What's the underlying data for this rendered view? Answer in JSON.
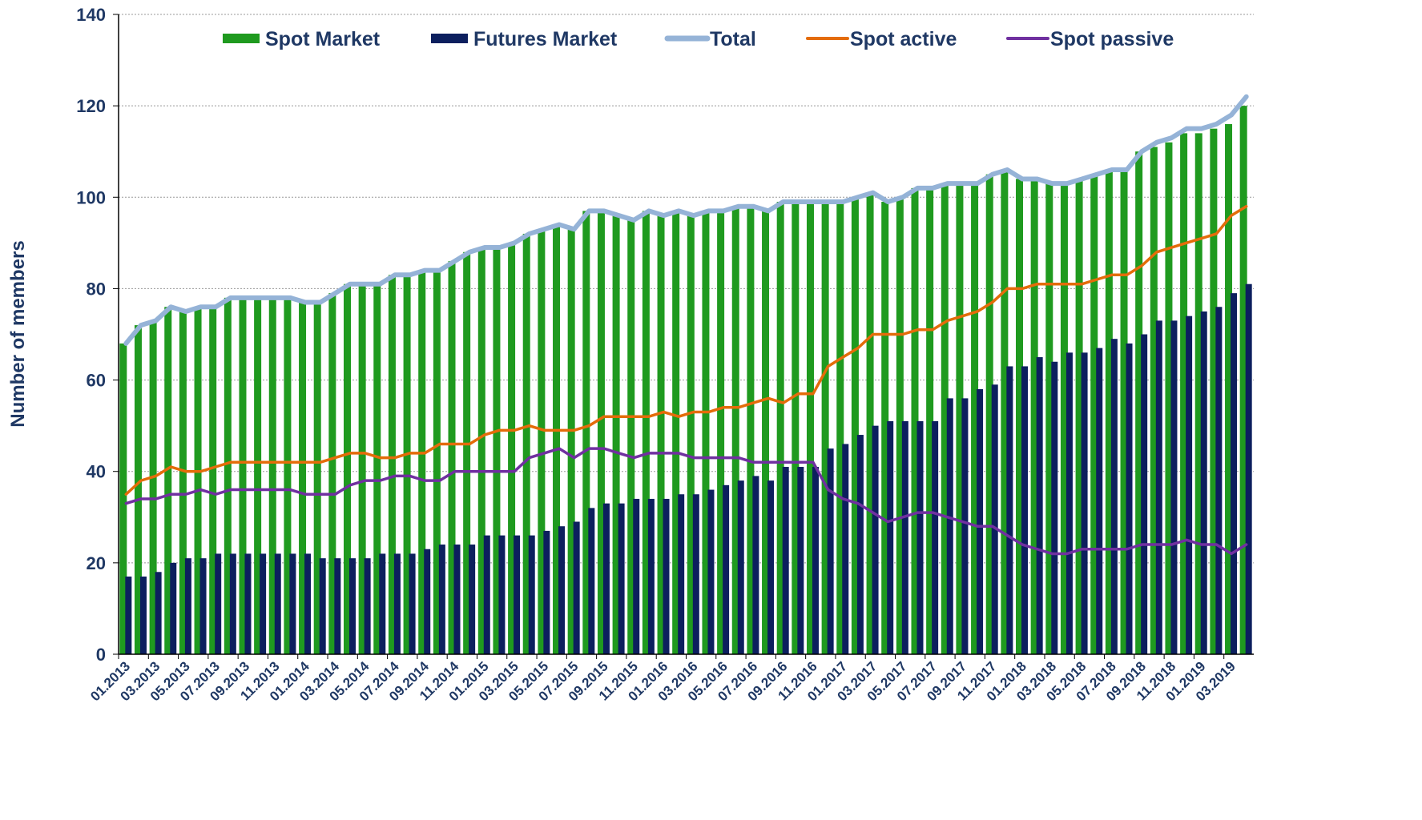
{
  "chart_data": {
    "type": "bar",
    "y_axis_label": "Number of members",
    "ylim": [
      0,
      140
    ],
    "yticks": [
      0,
      20,
      40,
      60,
      80,
      100,
      120,
      140
    ],
    "grid": true,
    "legend": "top",
    "categories": [
      "01.2013",
      null,
      "03.2013",
      null,
      "05.2013",
      null,
      "07.2013",
      null,
      "09.2013",
      null,
      "11.2013",
      null,
      "01.2014",
      null,
      "03.2014",
      null,
      "05.2014",
      null,
      "07.2014",
      null,
      "09.2014",
      null,
      "11.2014",
      null,
      "01.2015",
      null,
      "03.2015",
      null,
      "05.2015",
      null,
      "07.2015",
      null,
      "09.2015",
      null,
      "11.2015",
      null,
      "01.2016",
      null,
      "03.2016",
      null,
      "05.2016",
      null,
      "07.2016",
      null,
      "09.2016",
      null,
      "11.2016",
      null,
      "01.2017",
      null,
      "03.2017",
      null,
      "05.2017",
      null,
      "07.2017",
      null,
      "09.2017",
      null,
      "11.2017",
      null,
      "01.2018",
      null,
      "03.2018",
      null,
      "05.2018",
      null,
      "07.2018",
      null,
      "09.2018",
      null,
      "11.2018",
      null,
      "01.2019",
      null,
      "03.2019",
      null
    ],
    "series": [
      {
        "name": "Spot Market",
        "type": "bar",
        "color": "#1f9a1f",
        "values": [
          68,
          72,
          73,
          76,
          75,
          76,
          76,
          78,
          78,
          78,
          78,
          78,
          77,
          77,
          79,
          81,
          81,
          81,
          83,
          83,
          84,
          84,
          86,
          88,
          89,
          89,
          90,
          92,
          93,
          94,
          93,
          97,
          97,
          96,
          95,
          97,
          96,
          97,
          96,
          97,
          97,
          98,
          98,
          97,
          99,
          99,
          99,
          99,
          99,
          100,
          101,
          99,
          100,
          102,
          102,
          103,
          103,
          103,
          105,
          106,
          104,
          104,
          103,
          103,
          104,
          105,
          106,
          106,
          110,
          111,
          112,
          114,
          114,
          115,
          116,
          120
        ]
      },
      {
        "name": "Futures Market",
        "type": "bar",
        "color": "#0c1f5e",
        "values": [
          17,
          17,
          18,
          20,
          21,
          21,
          22,
          22,
          22,
          22,
          22,
          22,
          22,
          21,
          21,
          21,
          21,
          22,
          22,
          22,
          23,
          24,
          24,
          24,
          26,
          26,
          26,
          26,
          27,
          28,
          29,
          32,
          33,
          33,
          34,
          34,
          34,
          35,
          35,
          36,
          37,
          38,
          39,
          38,
          41,
          41,
          41,
          45,
          46,
          48,
          50,
          51,
          51,
          51,
          51,
          56,
          56,
          58,
          59,
          63,
          63,
          65,
          64,
          66,
          66,
          67,
          69,
          68,
          70,
          73,
          73,
          74,
          75,
          76,
          79,
          81
        ]
      },
      {
        "name": "Total",
        "type": "line",
        "color": "#95b3d7",
        "values": [
          68,
          72,
          73,
          76,
          75,
          76,
          76,
          78,
          78,
          78,
          78,
          78,
          77,
          77,
          79,
          81,
          81,
          81,
          83,
          83,
          84,
          84,
          86,
          88,
          89,
          89,
          90,
          92,
          93,
          94,
          93,
          97,
          97,
          96,
          95,
          97,
          96,
          97,
          96,
          97,
          97,
          98,
          98,
          97,
          99,
          99,
          99,
          99,
          99,
          100,
          101,
          99,
          100,
          102,
          102,
          103,
          103,
          103,
          105,
          106,
          104,
          104,
          103,
          103,
          104,
          105,
          106,
          106,
          110,
          112,
          113,
          115,
          115,
          116,
          118,
          122
        ]
      },
      {
        "name": "Spot active",
        "type": "line",
        "color": "#e46c0a",
        "values": [
          35,
          38,
          39,
          41,
          40,
          40,
          41,
          42,
          42,
          42,
          42,
          42,
          42,
          42,
          43,
          44,
          44,
          43,
          43,
          44,
          44,
          46,
          46,
          46,
          48,
          49,
          49,
          50,
          49,
          49,
          49,
          50,
          52,
          52,
          52,
          52,
          53,
          52,
          53,
          53,
          54,
          54,
          55,
          56,
          55,
          57,
          57,
          63,
          65,
          67,
          70,
          70,
          70,
          71,
          71,
          73,
          74,
          75,
          77,
          80,
          80,
          81,
          81,
          81,
          81,
          82,
          83,
          83,
          85,
          88,
          89,
          90,
          91,
          92,
          96,
          98
        ]
      },
      {
        "name": "Spot passive",
        "type": "line",
        "color": "#7030a0",
        "values": [
          33,
          34,
          34,
          35,
          35,
          36,
          35,
          36,
          36,
          36,
          36,
          36,
          35,
          35,
          35,
          37,
          38,
          38,
          39,
          39,
          38,
          38,
          40,
          40,
          40,
          40,
          40,
          43,
          44,
          45,
          43,
          45,
          45,
          44,
          43,
          44,
          44,
          44,
          43,
          43,
          43,
          43,
          42,
          42,
          42,
          42,
          42,
          36,
          34,
          33,
          31,
          29,
          30,
          31,
          31,
          30,
          29,
          28,
          28,
          26,
          24,
          23,
          22,
          22,
          23,
          23,
          23,
          23,
          24,
          24,
          24,
          25,
          24,
          24,
          22,
          24
        ]
      }
    ]
  }
}
